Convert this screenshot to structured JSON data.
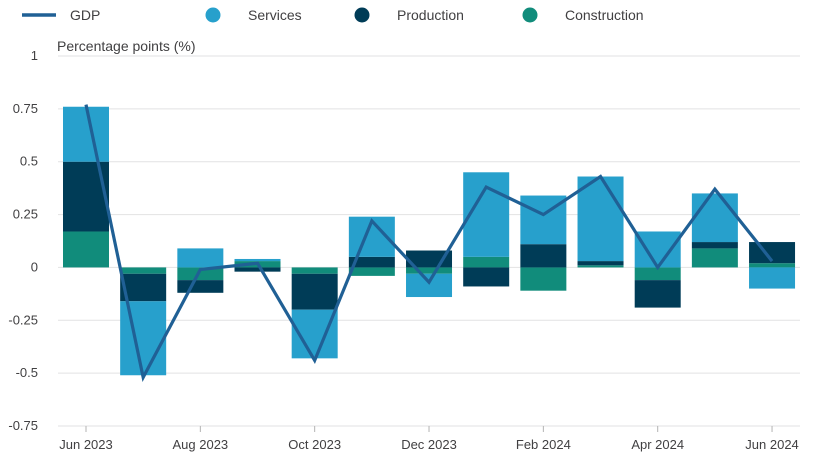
{
  "chart_data": {
    "type": "bar",
    "stacked": true,
    "ylabel": "Percentage points (%)",
    "ylim": [
      -0.75,
      1
    ],
    "yticks": [
      1,
      0.75,
      0.5,
      0.25,
      0,
      -0.25,
      -0.5,
      -0.75
    ],
    "ytick_labels": [
      "1",
      "0.75",
      "0.5",
      "0.25",
      "0",
      "-0.25",
      "-0.5",
      "-0.75"
    ],
    "months": [
      "Jun 2023",
      "Jul 2023",
      "Aug 2023",
      "Sep 2023",
      "Oct 2023",
      "Nov 2023",
      "Dec 2023",
      "Jan 2024",
      "Feb 2024",
      "Mar 2024",
      "Apr 2024",
      "May 2024",
      "Jun 2024"
    ],
    "xtick_labels": [
      {
        "index": 0,
        "label": "Jun 2023"
      },
      {
        "index": 2,
        "label": "Aug 2023"
      },
      {
        "index": 4,
        "label": "Oct 2023"
      },
      {
        "index": 6,
        "label": "Dec 2023"
      },
      {
        "index": 8,
        "label": "Feb 2024"
      },
      {
        "index": 10,
        "label": "Apr 2024"
      },
      {
        "index": 12,
        "label": "Jun 2024"
      }
    ],
    "series": [
      {
        "name": "Construction",
        "color": "#118c7b",
        "values": [
          0.17,
          -0.03,
          -0.06,
          0.03,
          -0.03,
          -0.04,
          -0.03,
          0.05,
          -0.11,
          0.01,
          -0.06,
          0.09,
          0.02
        ]
      },
      {
        "name": "Production",
        "color": "#003c57",
        "values": [
          0.33,
          -0.13,
          -0.06,
          -0.02,
          -0.17,
          0.05,
          0.08,
          -0.09,
          0.11,
          0.02,
          -0.13,
          0.03,
          0.1
        ]
      },
      {
        "name": "Services",
        "color": "#27a0cc",
        "values": [
          0.26,
          -0.35,
          0.09,
          0.01,
          -0.23,
          0.19,
          -0.11,
          0.4,
          0.23,
          0.4,
          0.17,
          0.23,
          -0.1
        ]
      }
    ],
    "line": {
      "name": "GDP",
      "color": "#206095",
      "values": [
        0.77,
        -0.52,
        -0.01,
        0.02,
        -0.44,
        0.22,
        -0.07,
        0.38,
        0.25,
        0.43,
        0.0,
        0.37,
        0.03
      ]
    },
    "legend": [
      {
        "name": "GDP",
        "kind": "line",
        "color": "#206095"
      },
      {
        "name": "Services",
        "kind": "dot",
        "color": "#27a0cc"
      },
      {
        "name": "Production",
        "kind": "dot",
        "color": "#003c57"
      },
      {
        "name": "Construction",
        "kind": "dot",
        "color": "#118c7b"
      }
    ],
    "grid": true,
    "legend_position": "top"
  }
}
